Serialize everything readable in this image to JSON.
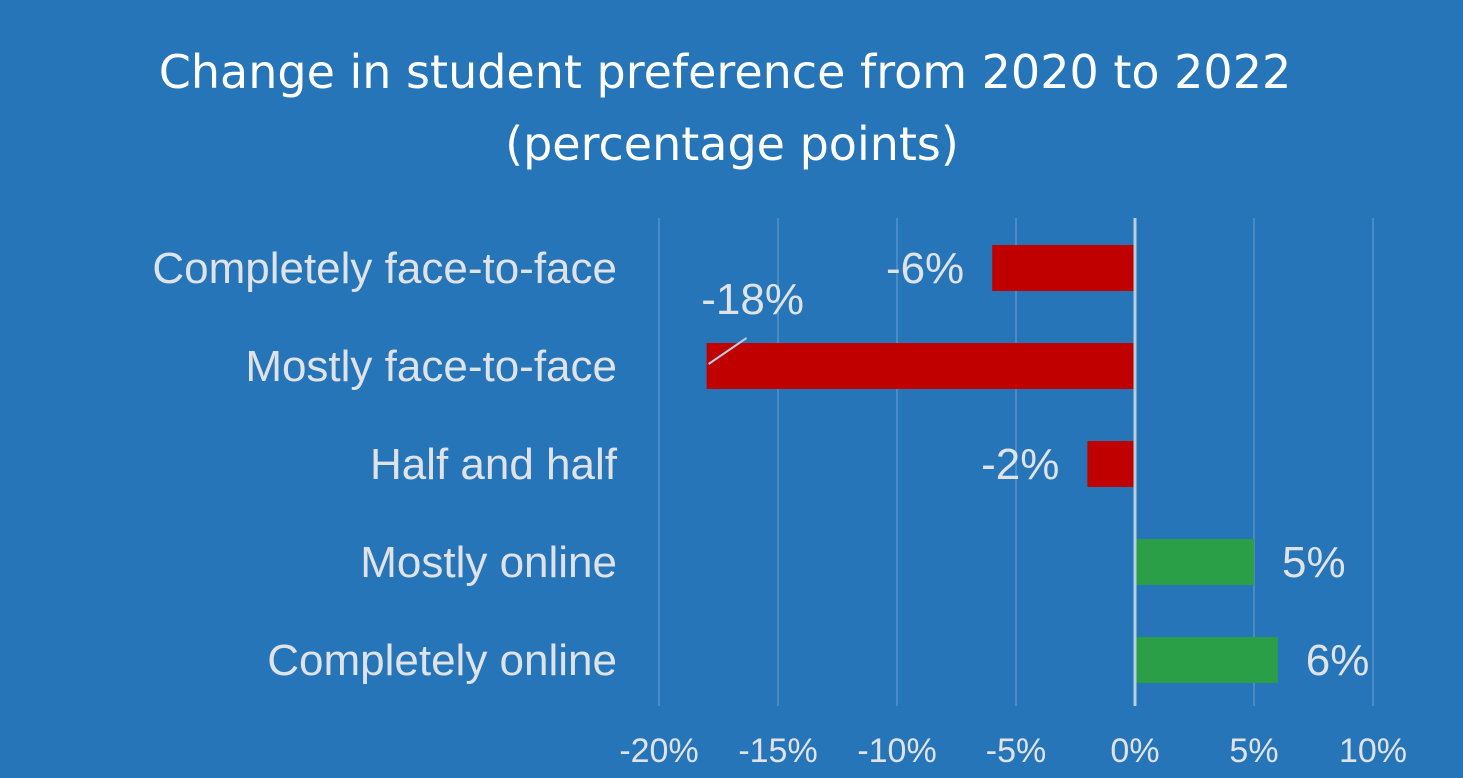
{
  "chart_data": {
    "type": "bar",
    "orientation": "horizontal",
    "title": "Change in student preference from 2020 to 2022",
    "subtitle": "(percentage points)",
    "categories": [
      "Completely face-to-face",
      "Mostly face-to-face",
      "Half and half",
      "Mostly online",
      "Completely online"
    ],
    "values": [
      -6,
      -18,
      -2,
      5,
      6
    ],
    "data_labels": [
      "-6%",
      "-18%",
      "-2%",
      "5%",
      "6%"
    ],
    "xlim": [
      -20,
      10
    ],
    "x_ticks": [
      -20,
      -15,
      -10,
      -5,
      0,
      5,
      10
    ],
    "x_tick_labels": [
      "-20%",
      "-15%",
      "-10%",
      "-5%",
      "0%",
      "5%",
      "10%"
    ],
    "xlabel": "",
    "ylabel": "",
    "grid": true,
    "legend": "none",
    "colors": {
      "negative": "#c00000",
      "positive": "#2b9e48"
    }
  }
}
